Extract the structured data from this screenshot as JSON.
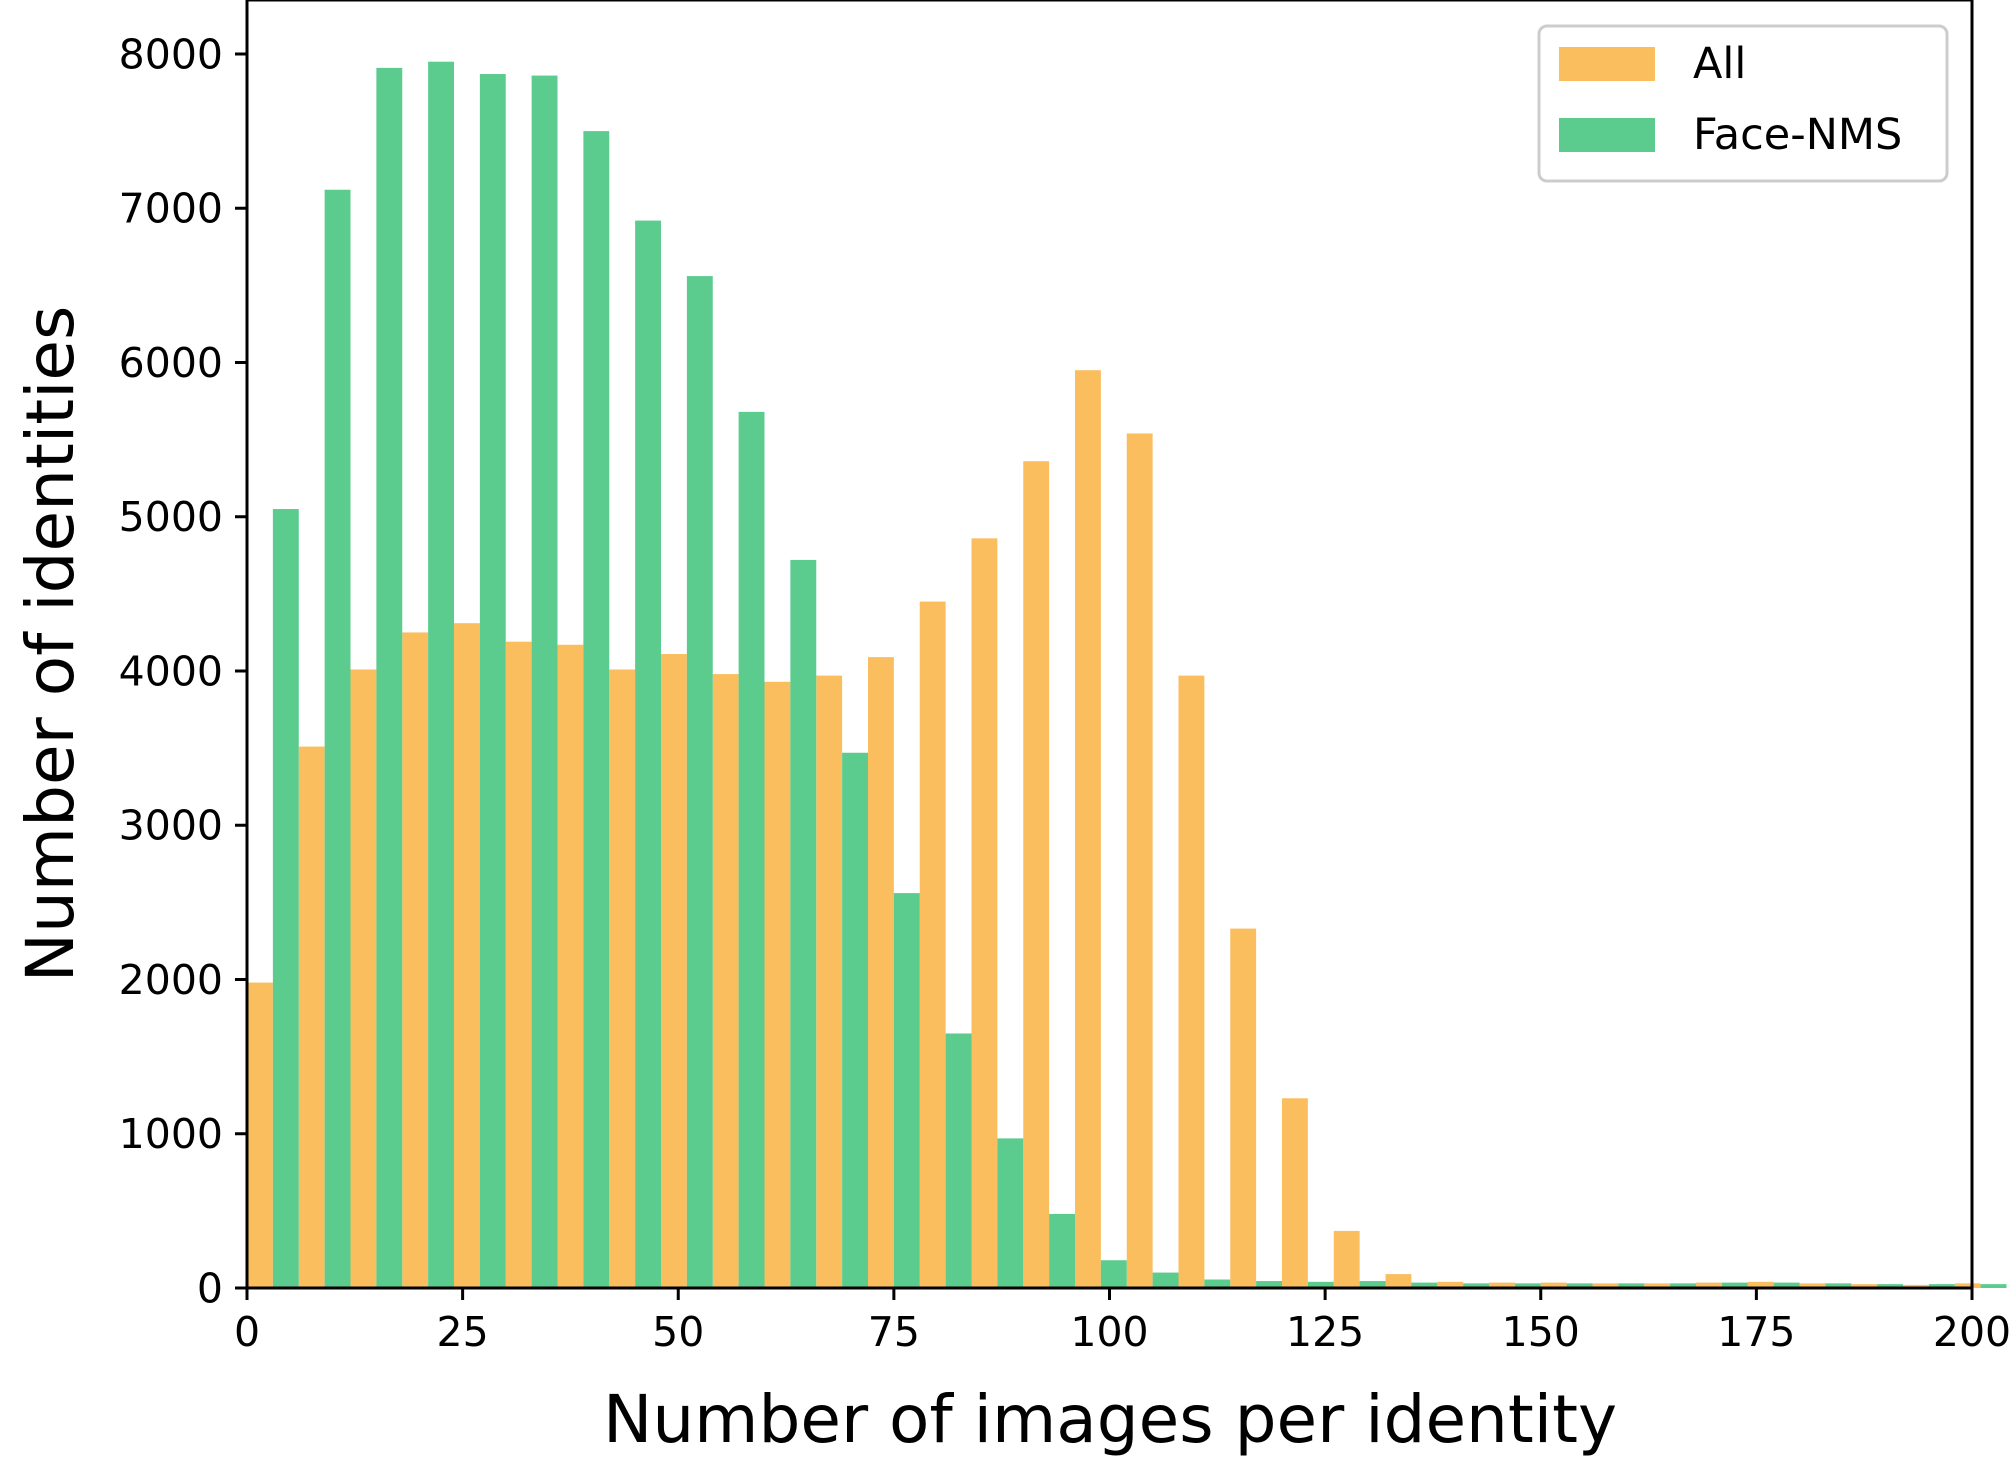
{
  "chart_data": {
    "type": "bar",
    "title": "",
    "xlabel": "Number of images per identity",
    "ylabel": "Number of identities",
    "xlim": [
      0,
      200
    ],
    "ylim": [
      0,
      8350
    ],
    "xticks": [
      0,
      25,
      50,
      75,
      100,
      125,
      150,
      175,
      200
    ],
    "yticks": [
      0,
      1000,
      2000,
      3000,
      4000,
      5000,
      6000,
      7000,
      8000
    ],
    "bin_width": 6,
    "grid": false,
    "legend_position": "top-right",
    "bin_starts": [
      0,
      6,
      12,
      18,
      24,
      30,
      36,
      42,
      48,
      54,
      60,
      66,
      72,
      78,
      84,
      90,
      96,
      102,
      108,
      114,
      120,
      126,
      132,
      138,
      144,
      150,
      156,
      162,
      168,
      174,
      180,
      186,
      192,
      198
    ],
    "series": [
      {
        "name": "All",
        "color": "#FABE5F",
        "values": [
          1980,
          3510,
          4010,
          4250,
          4310,
          4190,
          4170,
          4010,
          4110,
          3980,
          3930,
          3970,
          4090,
          4450,
          4860,
          5360,
          5950,
          5540,
          3970,
          2330,
          1230,
          370,
          90,
          40,
          35,
          35,
          30,
          30,
          35,
          40,
          30,
          25,
          20,
          30
        ]
      },
      {
        "name": "Face-NMS",
        "color": "#5BCB8E",
        "values": [
          5050,
          7120,
          7910,
          7950,
          7870,
          7860,
          7500,
          6920,
          6560,
          5680,
          4720,
          3470,
          2560,
          1650,
          970,
          480,
          180,
          100,
          55,
          45,
          40,
          45,
          35,
          30,
          30,
          30,
          30,
          30,
          35,
          35,
          30,
          25,
          25,
          25
        ]
      }
    ]
  }
}
